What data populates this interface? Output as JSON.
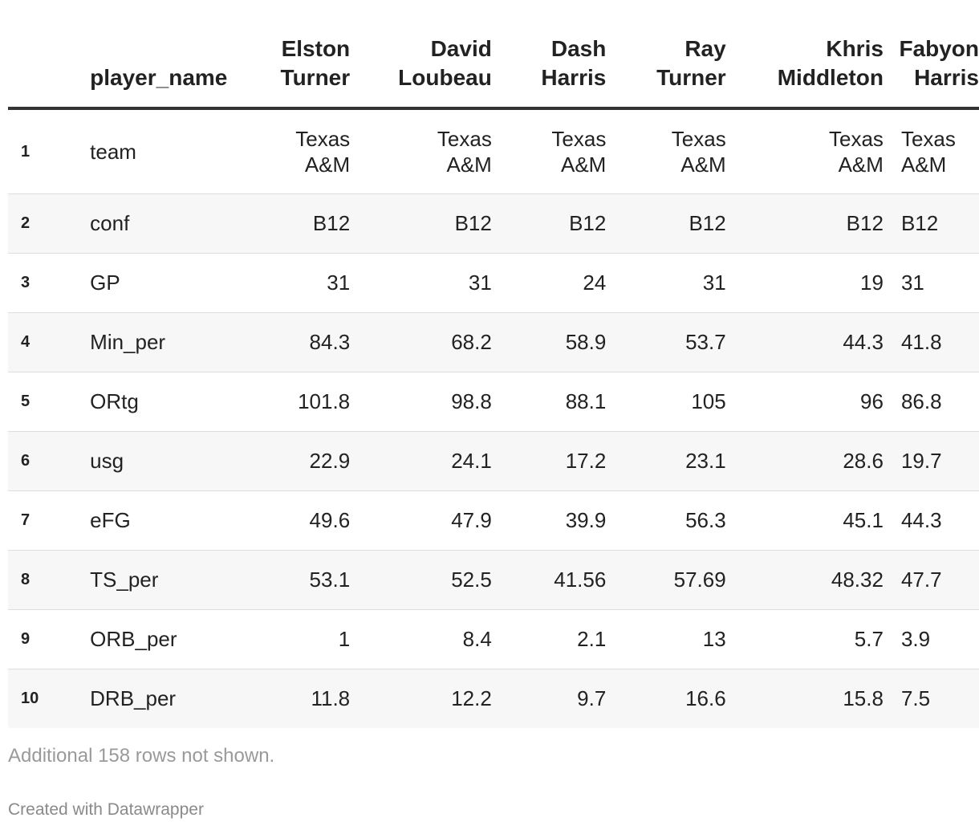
{
  "chart_data": {
    "type": "table",
    "columns": [
      "",
      "player_name",
      "Elston Turner",
      "David Loubeau",
      "Dash Harris",
      "Ray Turner",
      "Khris Middleton",
      "Fabyon Harris"
    ],
    "column_headers": [
      {
        "line1": "",
        "line2": ""
      },
      {
        "line1": "",
        "line2": "player_name"
      },
      {
        "line1": "Elston",
        "line2": "Turner"
      },
      {
        "line1": "David",
        "line2": "Loubeau"
      },
      {
        "line1": "Dash",
        "line2": "Harris"
      },
      {
        "line1": "Ray",
        "line2": "Turner"
      },
      {
        "line1": "Khris",
        "line2": "Middleton"
      },
      {
        "line1": "Fabyon",
        "line2": "Harris"
      }
    ],
    "rows": [
      {
        "index": "1",
        "stat": "team",
        "values": [
          "Texas A&M",
          "Texas A&M",
          "Texas A&M",
          "Texas A&M",
          "Texas A&M",
          "Texas A&M"
        ]
      },
      {
        "index": "2",
        "stat": "conf",
        "values": [
          "B12",
          "B12",
          "B12",
          "B12",
          "B12",
          "B12"
        ]
      },
      {
        "index": "3",
        "stat": "GP",
        "values": [
          "31",
          "31",
          "24",
          "31",
          "19",
          "31"
        ]
      },
      {
        "index": "4",
        "stat": "Min_per",
        "values": [
          "84.3",
          "68.2",
          "58.9",
          "53.7",
          "44.3",
          "41.8"
        ]
      },
      {
        "index": "5",
        "stat": "ORtg",
        "values": [
          "101.8",
          "98.8",
          "88.1",
          "105",
          "96",
          "86.8"
        ]
      },
      {
        "index": "6",
        "stat": "usg",
        "values": [
          "22.9",
          "24.1",
          "17.2",
          "23.1",
          "28.6",
          "19.7"
        ]
      },
      {
        "index": "7",
        "stat": "eFG",
        "values": [
          "49.6",
          "47.9",
          "39.9",
          "56.3",
          "45.1",
          "44.3"
        ]
      },
      {
        "index": "8",
        "stat": "TS_per",
        "values": [
          "53.1",
          "52.5",
          "41.56",
          "57.69",
          "48.32",
          "47.7"
        ]
      },
      {
        "index": "9",
        "stat": "ORB_per",
        "values": [
          "1",
          "8.4",
          "2.1",
          "13",
          "5.7",
          "3.9"
        ]
      },
      {
        "index": "10",
        "stat": "DRB_per",
        "values": [
          "11.8",
          "12.2",
          "9.7",
          "16.6",
          "15.8",
          "7.5"
        ]
      }
    ]
  },
  "footnote": "Additional 158 rows not shown.",
  "credit": "Created with Datawrapper",
  "colors": {
    "text": "#222222",
    "stripe": "#f7f7f7",
    "rule": "#333333",
    "muted": "#9a9a9a"
  }
}
